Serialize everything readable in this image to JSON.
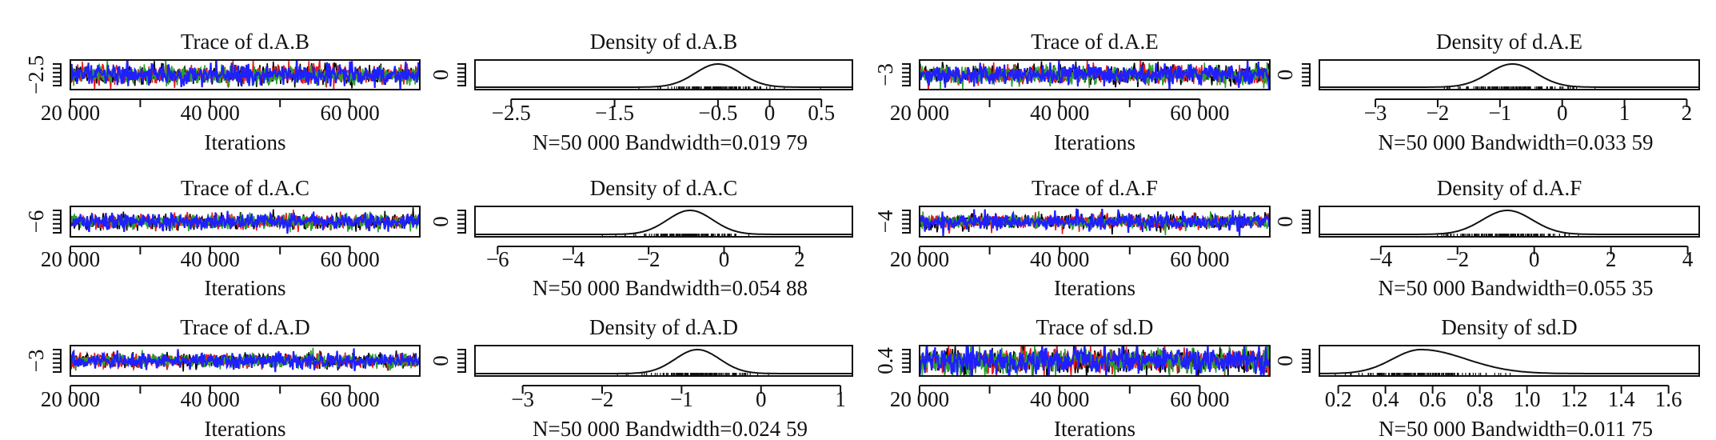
{
  "chart_data": [
    {
      "type": "line",
      "kind": "trace",
      "title": "Trace of d.A.B",
      "xlabel": "Iterations",
      "x_ticks": [
        "20 000",
        "40 000",
        "60 000"
      ],
      "x_tick_values": [
        20000,
        40000,
        60000
      ],
      "xlim": [
        20000,
        70000
      ],
      "y_ticks": [
        "−2.5"
      ],
      "y_tick_values": [
        -2.5
      ],
      "ylim": [
        -2.7,
        -2.3
      ],
      "center": -2.5,
      "spread": 0.08,
      "series": [
        {
          "color": "#000000"
        },
        {
          "color": "#e41a1c"
        },
        {
          "color": "#2ca02c"
        },
        {
          "color": "#1f1fff"
        }
      ]
    },
    {
      "type": "line",
      "kind": "density",
      "title": "Density of d.A.B",
      "xlabel": "N=50 000 Bandwidth=0.019 79",
      "x_ticks": [
        "−2.5",
        "−1.5",
        "−0.5",
        "0",
        "0.5"
      ],
      "x_tick_values": [
        -2.5,
        -1.5,
        -0.5,
        0,
        0.5
      ],
      "xlim": [
        -2.85,
        0.8
      ],
      "y_ticks": [
        "0"
      ],
      "y_tick_values": [
        0
      ],
      "peak_x": -0.5,
      "sd": 0.22
    },
    {
      "type": "line",
      "kind": "trace",
      "title": "Trace of d.A.E",
      "xlabel": "Iterations",
      "x_ticks": [
        "20 000",
        "40 000",
        "60 000"
      ],
      "x_tick_values": [
        20000,
        40000,
        60000
      ],
      "xlim": [
        20000,
        70000
      ],
      "y_ticks": [
        "−3"
      ],
      "y_tick_values": [
        -3
      ],
      "ylim": [
        -3.3,
        -2.7
      ],
      "center": -3,
      "spread": 0.12,
      "series": [
        {
          "color": "#000000"
        },
        {
          "color": "#e41a1c"
        },
        {
          "color": "#2ca02c"
        },
        {
          "color": "#1f1fff"
        }
      ]
    },
    {
      "type": "line",
      "kind": "density",
      "title": "Density of d.A.E",
      "xlabel": "N=50 000 Bandwidth=0.033 59",
      "x_ticks": [
        "−3",
        "−2",
        "−1",
        "0",
        "1",
        "2"
      ],
      "x_tick_values": [
        -3,
        -2,
        -1,
        0,
        1,
        2
      ],
      "xlim": [
        -3.9,
        2.2
      ],
      "y_ticks": [
        "0"
      ],
      "y_tick_values": [
        0
      ],
      "peak_x": -0.8,
      "sd": 0.38
    },
    {
      "type": "line",
      "kind": "trace",
      "title": "Trace of d.A.C",
      "xlabel": "Iterations",
      "x_ticks": [
        "20 000",
        "40 000",
        "60 000"
      ],
      "x_tick_values": [
        20000,
        40000,
        60000
      ],
      "xlim": [
        20000,
        70000
      ],
      "y_ticks": [
        "−6"
      ],
      "y_tick_values": [
        -6
      ],
      "ylim": [
        -6.4,
        -5.6
      ],
      "center": -6,
      "spread": 0.12,
      "series": [
        {
          "color": "#000000"
        },
        {
          "color": "#e41a1c"
        },
        {
          "color": "#2ca02c"
        },
        {
          "color": "#1f1fff"
        }
      ]
    },
    {
      "type": "line",
      "kind": "density",
      "title": "Density of d.A.C",
      "xlabel": "N=50 000 Bandwidth=0.054 88",
      "x_ticks": [
        "−6",
        "−4",
        "−2",
        "0",
        "2"
      ],
      "x_tick_values": [
        -6,
        -4,
        -2,
        0,
        2
      ],
      "xlim": [
        -6.6,
        3.4
      ],
      "y_ticks": [
        "0"
      ],
      "y_tick_values": [
        0
      ],
      "peak_x": -0.9,
      "sd": 0.6
    },
    {
      "type": "line",
      "kind": "trace",
      "title": "Trace of d.A.F",
      "xlabel": "Iterations",
      "x_ticks": [
        "20 000",
        "40 000",
        "60 000"
      ],
      "x_tick_values": [
        20000,
        40000,
        60000
      ],
      "xlim": [
        20000,
        70000
      ],
      "y_ticks": [
        "−4"
      ],
      "y_tick_values": [
        -4
      ],
      "ylim": [
        -4.4,
        -3.6
      ],
      "center": -4,
      "spread": 0.12,
      "series": [
        {
          "color": "#000000"
        },
        {
          "color": "#e41a1c"
        },
        {
          "color": "#2ca02c"
        },
        {
          "color": "#1f1fff"
        }
      ]
    },
    {
      "type": "line",
      "kind": "density",
      "title": "Density of d.A.F",
      "xlabel": "N=50 000 Bandwidth=0.055 35",
      "x_ticks": [
        "−4",
        "−2",
        "0",
        "2",
        "4"
      ],
      "x_tick_values": [
        -4,
        -2,
        0,
        2,
        4
      ],
      "xlim": [
        -5.6,
        4.3
      ],
      "y_ticks": [
        "0"
      ],
      "y_tick_values": [
        0
      ],
      "peak_x": -0.7,
      "sd": 0.65
    },
    {
      "type": "line",
      "kind": "trace",
      "title": "Trace of d.A.D",
      "xlabel": "Iterations",
      "x_ticks": [
        "20 000",
        "40 000",
        "60 000"
      ],
      "x_tick_values": [
        20000,
        40000,
        60000
      ],
      "xlim": [
        20000,
        70000
      ],
      "y_ticks": [
        "−3"
      ],
      "y_tick_values": [
        -3
      ],
      "ylim": [
        -3.3,
        -2.7
      ],
      "center": -3,
      "spread": 0.09,
      "series": [
        {
          "color": "#000000"
        },
        {
          "color": "#e41a1c"
        },
        {
          "color": "#2ca02c"
        },
        {
          "color": "#1f1fff"
        }
      ]
    },
    {
      "type": "line",
      "kind": "density",
      "title": "Density of d.A.D",
      "xlabel": "N=50 000 Bandwidth=0.024 59",
      "x_ticks": [
        "−3",
        "−2",
        "−1",
        "0",
        "1"
      ],
      "x_tick_values": [
        -3,
        -2,
        -1,
        0,
        1
      ],
      "xlim": [
        -3.6,
        1.15
      ],
      "y_ticks": [
        "0"
      ],
      "y_tick_values": [
        0
      ],
      "peak_x": -0.8,
      "sd": 0.28
    },
    {
      "type": "line",
      "kind": "trace",
      "title": "Trace of sd.D",
      "xlabel": "Iterations",
      "x_ticks": [
        "20 000",
        "40 000",
        "60 000"
      ],
      "x_tick_values": [
        20000,
        40000,
        60000
      ],
      "xlim": [
        20000,
        70000
      ],
      "y_ticks": [
        "0.4"
      ],
      "y_tick_values": [
        0.4
      ],
      "ylim": [
        0.3,
        0.8
      ],
      "center": 0.55,
      "spread": 0.13,
      "series": [
        {
          "color": "#000000"
        },
        {
          "color": "#e41a1c"
        },
        {
          "color": "#2ca02c"
        },
        {
          "color": "#1f1fff"
        }
      ]
    },
    {
      "type": "line",
      "kind": "density",
      "title": "Density of sd.D",
      "xlabel": "N=50 000 Bandwidth=0.011 75",
      "x_ticks": [
        "0.2",
        "0.4",
        "0.6",
        "0.8",
        "1.0",
        "1.2",
        "1.4",
        "1.6"
      ],
      "x_tick_values": [
        0.2,
        0.4,
        0.6,
        0.8,
        1.0,
        1.2,
        1.4,
        1.6
      ],
      "xlim": [
        0.12,
        1.73
      ],
      "y_ticks": [
        "0"
      ],
      "y_tick_values": [
        0
      ],
      "peak_x": 0.55,
      "sd": 0.12,
      "skew": true
    }
  ]
}
